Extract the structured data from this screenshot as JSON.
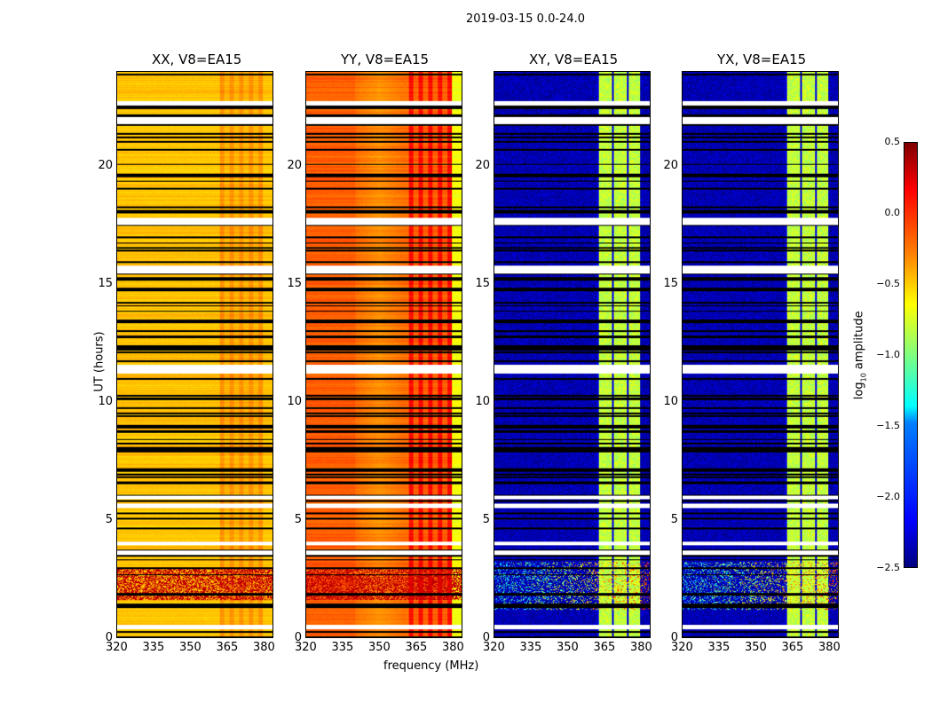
{
  "chart_data": {
    "type": "heatmap",
    "suptitle": "2019-03-15 0.0-24.0",
    "xlabel": "frequency (MHz)",
    "ylabel": "UT (hours)",
    "xlim": [
      320,
      384
    ],
    "ylim": [
      0,
      24
    ],
    "xticks": [
      "320",
      "335",
      "350",
      "365",
      "380"
    ],
    "xtick_values": [
      320,
      335,
      350,
      365,
      380
    ],
    "yticks": [
      "0",
      "5",
      "10",
      "15",
      "20"
    ],
    "ytick_values": [
      0,
      5,
      10,
      15,
      20
    ],
    "colormap": "jet",
    "colorbar": {
      "label": "log10 amplitude",
      "label_main": "log",
      "label_sub": "10",
      "label_rest": " amplitude",
      "range": [
        -2.5,
        0.5
      ],
      "ticks": [
        "0.5",
        "0.0",
        "−0.5",
        "−1.0",
        "−1.5",
        "−2.0",
        "−2.5"
      ],
      "tick_values": [
        0.5,
        0,
        -0.5,
        -1,
        -1.5,
        -2,
        -2.5
      ]
    },
    "flagged_hours_white": [
      0.45,
      3.6,
      4.0,
      5.6,
      5.95,
      11.3,
      11.5,
      15.55,
      15.7,
      17.6,
      17.75,
      21.9,
      22.0,
      22.7
    ],
    "rfi_band_mhz": [
      362,
      380
    ],
    "series": [
      {
        "name": "XX, V8=EA15",
        "base": -0.45,
        "band": -0.3,
        "low_hours_value": 0.3
      },
      {
        "name": "YY, V8=EA15",
        "base": -0.2,
        "band": 0.1,
        "low_hours_value": 0.3
      },
      {
        "name": "XY, V8=EA15",
        "base": -2.35,
        "band": -0.8,
        "low_hours_value": -1.5
      },
      {
        "name": "YX, V8=EA15",
        "base": -2.35,
        "band": -0.8,
        "low_hours_value": -1.5
      }
    ]
  }
}
